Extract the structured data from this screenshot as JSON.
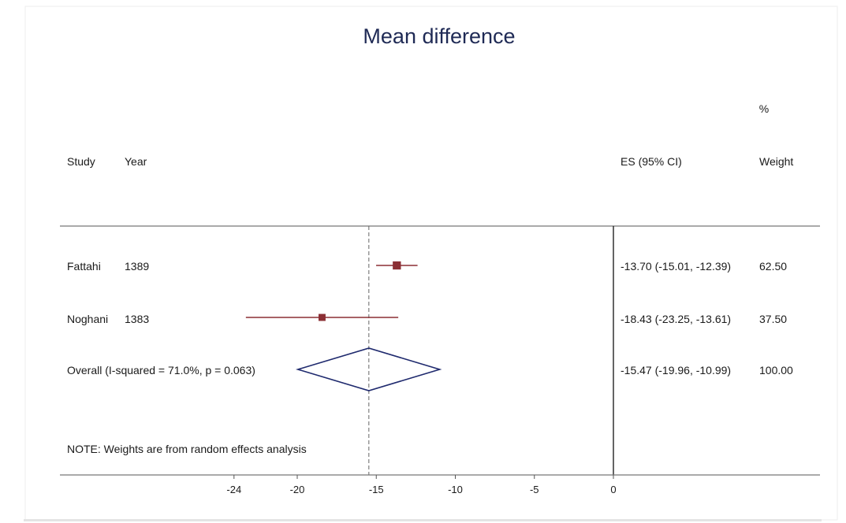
{
  "chart_data": {
    "type": "forest",
    "title": "Mean difference",
    "headers": {
      "study": "Study",
      "year": "Year",
      "es": "ES (95% CI)",
      "weight_top": "%",
      "weight": "Weight"
    },
    "studies": [
      {
        "name": "Fattahi",
        "year": "1389",
        "es": -13.7,
        "lower": -15.01,
        "upper": -12.39,
        "es_text": "-13.70 (-15.01, -12.39)",
        "weight": 62.5,
        "weight_text": "62.50"
      },
      {
        "name": "Noghani",
        "year": "1383",
        "es": -18.43,
        "lower": -23.25,
        "upper": -13.61,
        "es_text": "-18.43 (-23.25, -13.61)",
        "weight": 37.5,
        "weight_text": "37.50"
      }
    ],
    "overall": {
      "label": "Overall  (I-squared = 71.0%, p = 0.063)",
      "es": -15.47,
      "lower": -19.96,
      "upper": -10.99,
      "es_text": "-15.47 (-19.96, -10.99)",
      "weight_text": "100.00"
    },
    "note": "NOTE: Weights are from random effects analysis",
    "x_ticks": [
      -24,
      -20,
      -15,
      -10,
      -5,
      0
    ],
    "x_range": [
      -27,
      0
    ],
    "null_line": 0,
    "colors": {
      "study": "#8b2f34",
      "overall": "#1f2a6e",
      "axis": "#555555",
      "title": "#1f2a55"
    }
  }
}
